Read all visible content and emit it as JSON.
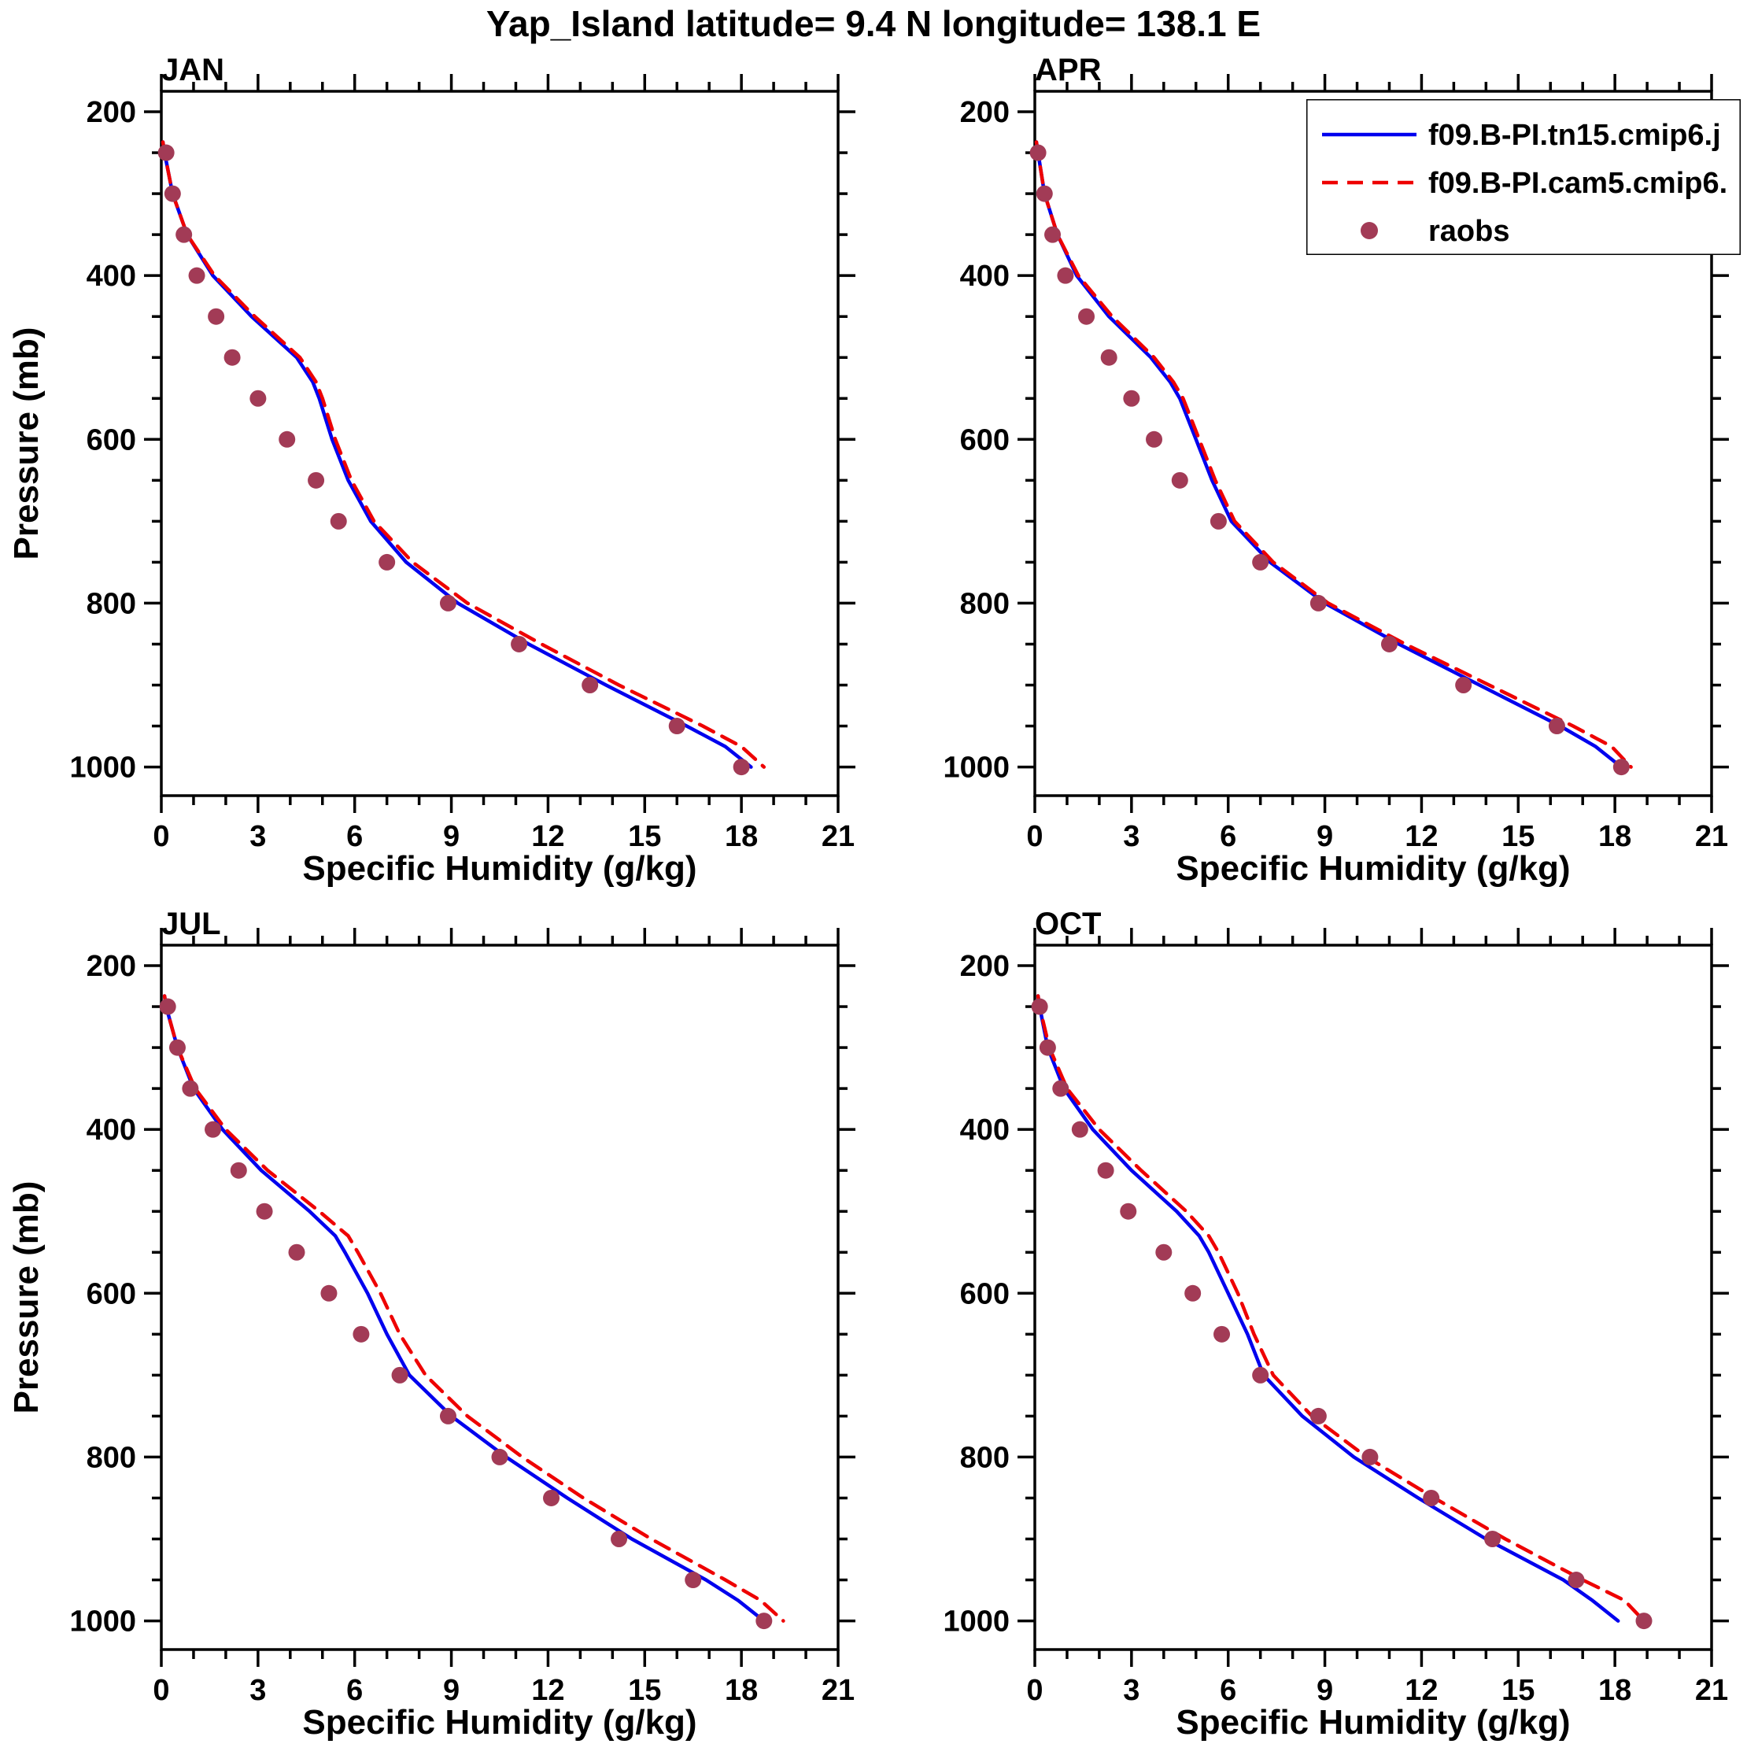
{
  "title": "Yap_Island  latitude= 9.4 N longitude= 138.1 E",
  "axes": {
    "xlabel": "Specific Humidity (g/kg)",
    "ylabel": "Pressure (mb)",
    "x_ticks": [
      0,
      3,
      6,
      9,
      12,
      15,
      18,
      21
    ],
    "y_ticks": [
      200,
      400,
      600,
      800,
      1000
    ],
    "x_range": [
      0,
      21
    ],
    "y_range": [
      175,
      1035
    ],
    "x_minor_step": 1,
    "y_minor_step": 50
  },
  "legend": {
    "entries": [
      {
        "label": "f09.B-PI.tn15.cmip6.j",
        "style": "line-solid",
        "color": "#0000EE"
      },
      {
        "label": "f09.B-PI.cam5.cmip6.",
        "style": "line-dashed",
        "color": "#EE0000"
      },
      {
        "label": "raobs",
        "style": "dot",
        "color": "#A23B56"
      }
    ]
  },
  "colors": {
    "model_tn15": "#0000EE",
    "model_cam5": "#EE0000",
    "raobs": "#A23B56",
    "axis": "#000000",
    "background": "#FFFFFF"
  },
  "chart_data": [
    {
      "type": "line",
      "month": "JAN",
      "pressures": [
        237,
        250,
        300,
        350,
        400,
        450,
        500,
        530,
        550,
        600,
        650,
        700,
        750,
        800,
        850,
        900,
        950,
        975,
        1000
      ],
      "series": [
        {
          "name": "f09.B-PI.tn15.cmip6.j",
          "color": "#0000EE",
          "dash": null,
          "values": [
            0.05,
            0.1,
            0.35,
            0.8,
            1.6,
            2.8,
            4.2,
            4.7,
            4.9,
            5.3,
            5.8,
            6.5,
            7.6,
            9.2,
            11.4,
            13.8,
            16.3,
            17.5,
            18.3
          ]
        },
        {
          "name": "f09.B-PI.cam5.cmip6.",
          "color": "#EE0000",
          "dash": "20 12",
          "values": [
            0.05,
            0.1,
            0.35,
            0.8,
            1.65,
            2.9,
            4.3,
            4.8,
            5.0,
            5.4,
            5.9,
            6.6,
            7.8,
            9.5,
            11.8,
            14.2,
            16.8,
            18.0,
            18.7
          ]
        }
      ],
      "obs": {
        "name": "raobs",
        "color": "#A23B56",
        "pressures": [
          250,
          300,
          350,
          400,
          450,
          500,
          550,
          600,
          650,
          700,
          750,
          800,
          850,
          900,
          950,
          1000
        ],
        "values": [
          0.15,
          0.35,
          0.7,
          1.1,
          1.7,
          2.2,
          3.0,
          3.9,
          4.8,
          5.5,
          7.0,
          8.9,
          11.1,
          13.3,
          16.0,
          18.0
        ]
      }
    },
    {
      "type": "line",
      "month": "APR",
      "pressures": [
        237,
        250,
        300,
        350,
        400,
        450,
        500,
        530,
        550,
        600,
        650,
        700,
        750,
        800,
        850,
        900,
        950,
        975,
        1000
      ],
      "series": [
        {
          "name": "f09.B-PI.tn15.cmip6.j",
          "color": "#0000EE",
          "dash": null,
          "values": [
            0.05,
            0.1,
            0.3,
            0.7,
            1.3,
            2.3,
            3.6,
            4.2,
            4.5,
            5.0,
            5.5,
            6.1,
            7.3,
            9.0,
            11.3,
            13.8,
            16.3,
            17.4,
            18.2
          ]
        },
        {
          "name": "f09.B-PI.cam5.cmip6.",
          "color": "#EE0000",
          "dash": "20 12",
          "values": [
            0.05,
            0.1,
            0.3,
            0.7,
            1.35,
            2.4,
            3.7,
            4.3,
            4.6,
            5.1,
            5.6,
            6.2,
            7.4,
            9.1,
            11.5,
            14.1,
            16.7,
            17.9,
            18.5
          ]
        }
      ],
      "obs": {
        "name": "raobs",
        "color": "#A23B56",
        "pressures": [
          250,
          300,
          350,
          400,
          450,
          500,
          550,
          600,
          650,
          700,
          750,
          800,
          850,
          900,
          950,
          1000
        ],
        "values": [
          0.1,
          0.3,
          0.55,
          0.95,
          1.6,
          2.3,
          3.0,
          3.7,
          4.5,
          5.7,
          7.0,
          8.8,
          11.0,
          13.3,
          16.2,
          18.2
        ]
      }
    },
    {
      "type": "line",
      "month": "JUL",
      "pressures": [
        237,
        250,
        300,
        350,
        400,
        450,
        500,
        530,
        550,
        600,
        650,
        700,
        750,
        800,
        850,
        900,
        950,
        975,
        1000
      ],
      "series": [
        {
          "name": "f09.B-PI.tn15.cmip6.j",
          "color": "#0000EE",
          "dash": null,
          "values": [
            0.1,
            0.15,
            0.5,
            1.0,
            1.9,
            3.1,
            4.6,
            5.4,
            5.7,
            6.4,
            7.0,
            7.7,
            9.0,
            10.7,
            12.6,
            14.6,
            16.9,
            17.9,
            18.7
          ]
        },
        {
          "name": "f09.B-PI.cam5.cmip6.",
          "color": "#EE0000",
          "dash": "20 12",
          "values": [
            0.1,
            0.15,
            0.5,
            1.05,
            2.0,
            3.3,
            4.9,
            5.8,
            6.1,
            6.8,
            7.4,
            8.2,
            9.5,
            11.2,
            13.1,
            15.2,
            17.5,
            18.6,
            19.3
          ]
        }
      ],
      "obs": {
        "name": "raobs",
        "color": "#A23B56",
        "pressures": [
          250,
          300,
          350,
          400,
          450,
          500,
          550,
          600,
          650,
          700,
          750,
          800,
          850,
          900,
          950,
          1000
        ],
        "values": [
          0.2,
          0.5,
          0.9,
          1.6,
          2.4,
          3.2,
          4.2,
          5.2,
          6.2,
          7.4,
          8.9,
          10.5,
          12.1,
          14.2,
          16.5,
          18.7
        ]
      }
    },
    {
      "type": "line",
      "month": "OCT",
      "pressures": [
        237,
        250,
        300,
        350,
        400,
        450,
        500,
        530,
        550,
        600,
        650,
        700,
        750,
        800,
        850,
        900,
        950,
        975,
        1000
      ],
      "series": [
        {
          "name": "f09.B-PI.tn15.cmip6.j",
          "color": "#0000EE",
          "dash": null,
          "values": [
            0.1,
            0.15,
            0.4,
            0.9,
            1.8,
            3.0,
            4.4,
            5.1,
            5.4,
            6.0,
            6.6,
            7.1,
            8.3,
            9.9,
            11.9,
            14.0,
            16.4,
            17.3,
            18.1
          ]
        },
        {
          "name": "f09.B-PI.cam5.cmip6.",
          "color": "#EE0000",
          "dash": "20 12",
          "values": [
            0.1,
            0.15,
            0.45,
            1.0,
            2.0,
            3.3,
            4.7,
            5.4,
            5.7,
            6.3,
            6.8,
            7.4,
            8.6,
            10.3,
            12.4,
            14.6,
            17.0,
            18.3,
            18.9
          ]
        }
      ],
      "obs": {
        "name": "raobs",
        "color": "#A23B56",
        "pressures": [
          250,
          300,
          350,
          400,
          450,
          500,
          550,
          600,
          650,
          700,
          750,
          800,
          850,
          900,
          950,
          1000
        ],
        "values": [
          0.15,
          0.4,
          0.8,
          1.4,
          2.2,
          2.9,
          4.0,
          4.9,
          5.8,
          7.0,
          8.8,
          10.4,
          12.3,
          14.2,
          16.8,
          18.9
        ]
      }
    }
  ]
}
